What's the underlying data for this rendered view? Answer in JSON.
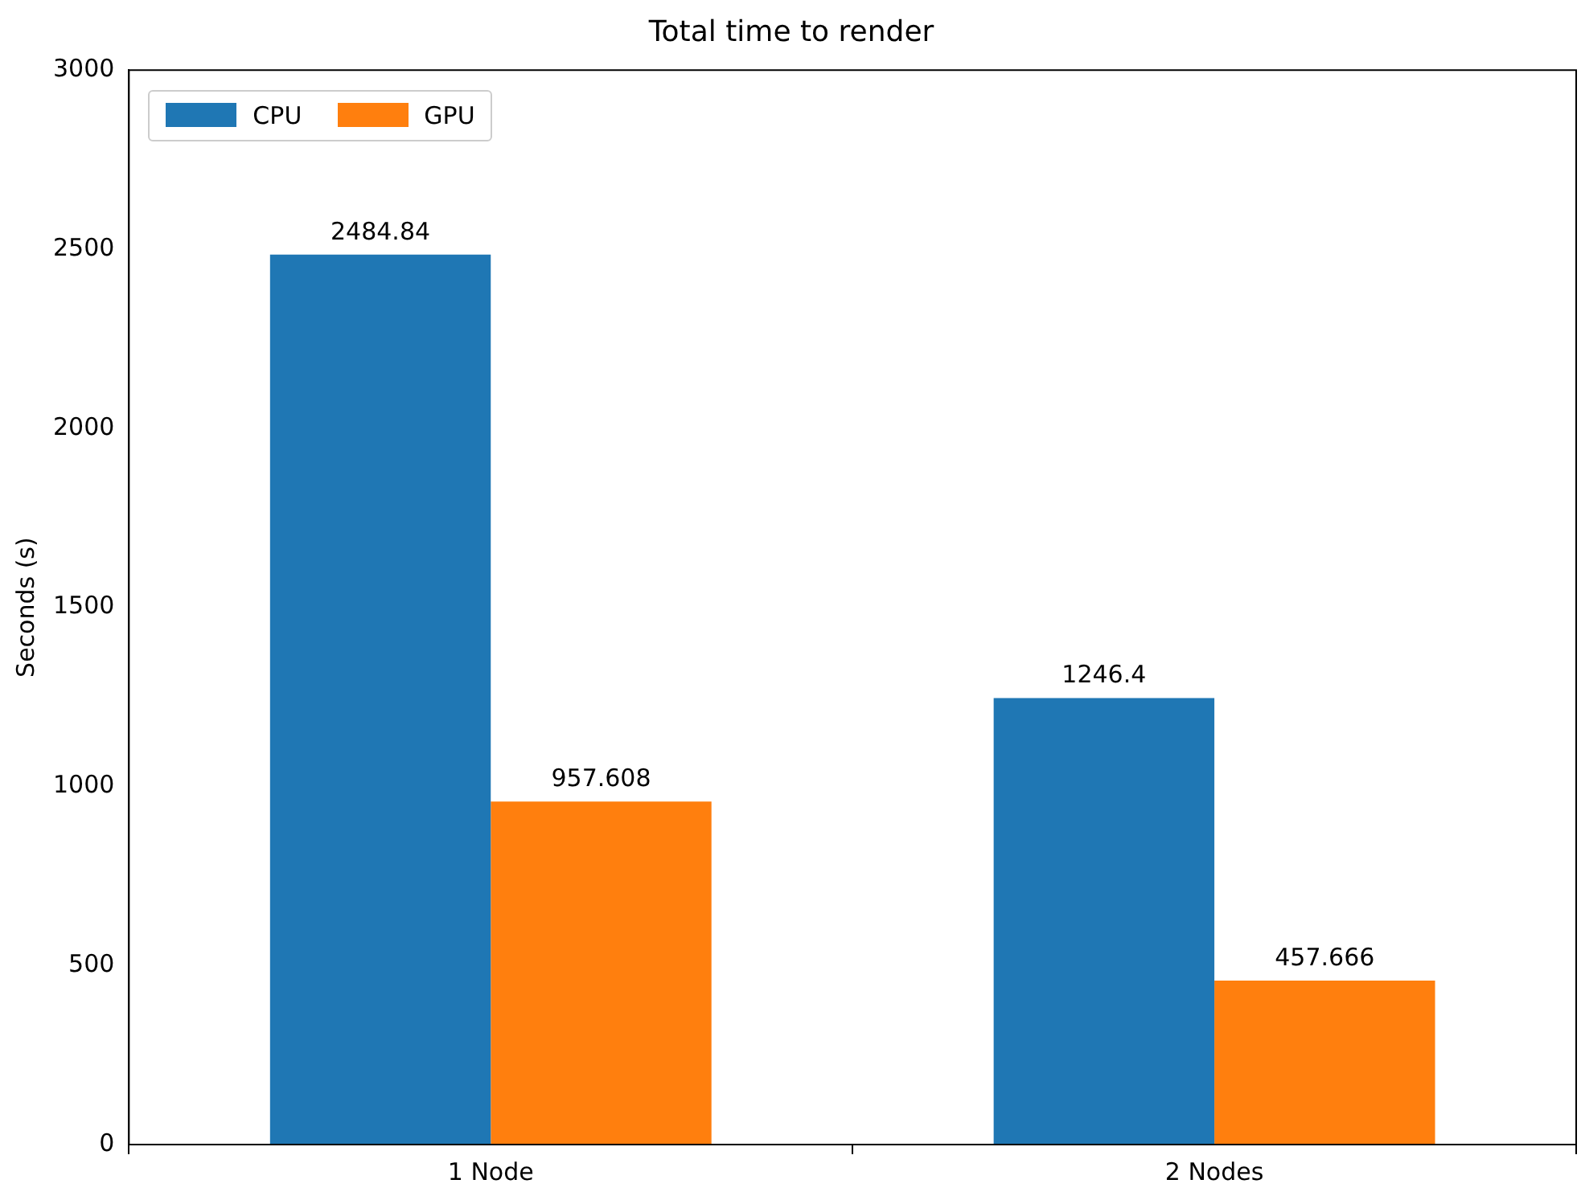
{
  "chart_data": {
    "type": "bar",
    "title": "Total time to render",
    "ylabel": "Seconds (s)",
    "categories": [
      "1 Node",
      "2 Nodes"
    ],
    "series": [
      {
        "name": "CPU",
        "color": "#1f77b4",
        "values": [
          2484.84,
          1246.4
        ]
      },
      {
        "name": "GPU",
        "color": "#ff7f0e",
        "values": [
          957.608,
          457.666
        ]
      }
    ],
    "ylim": [
      0,
      3000
    ],
    "yticks": [
      0,
      500,
      1000,
      1500,
      2000,
      2500,
      3000
    ],
    "grid": false,
    "legend": "top left",
    "data_labels": true
  }
}
